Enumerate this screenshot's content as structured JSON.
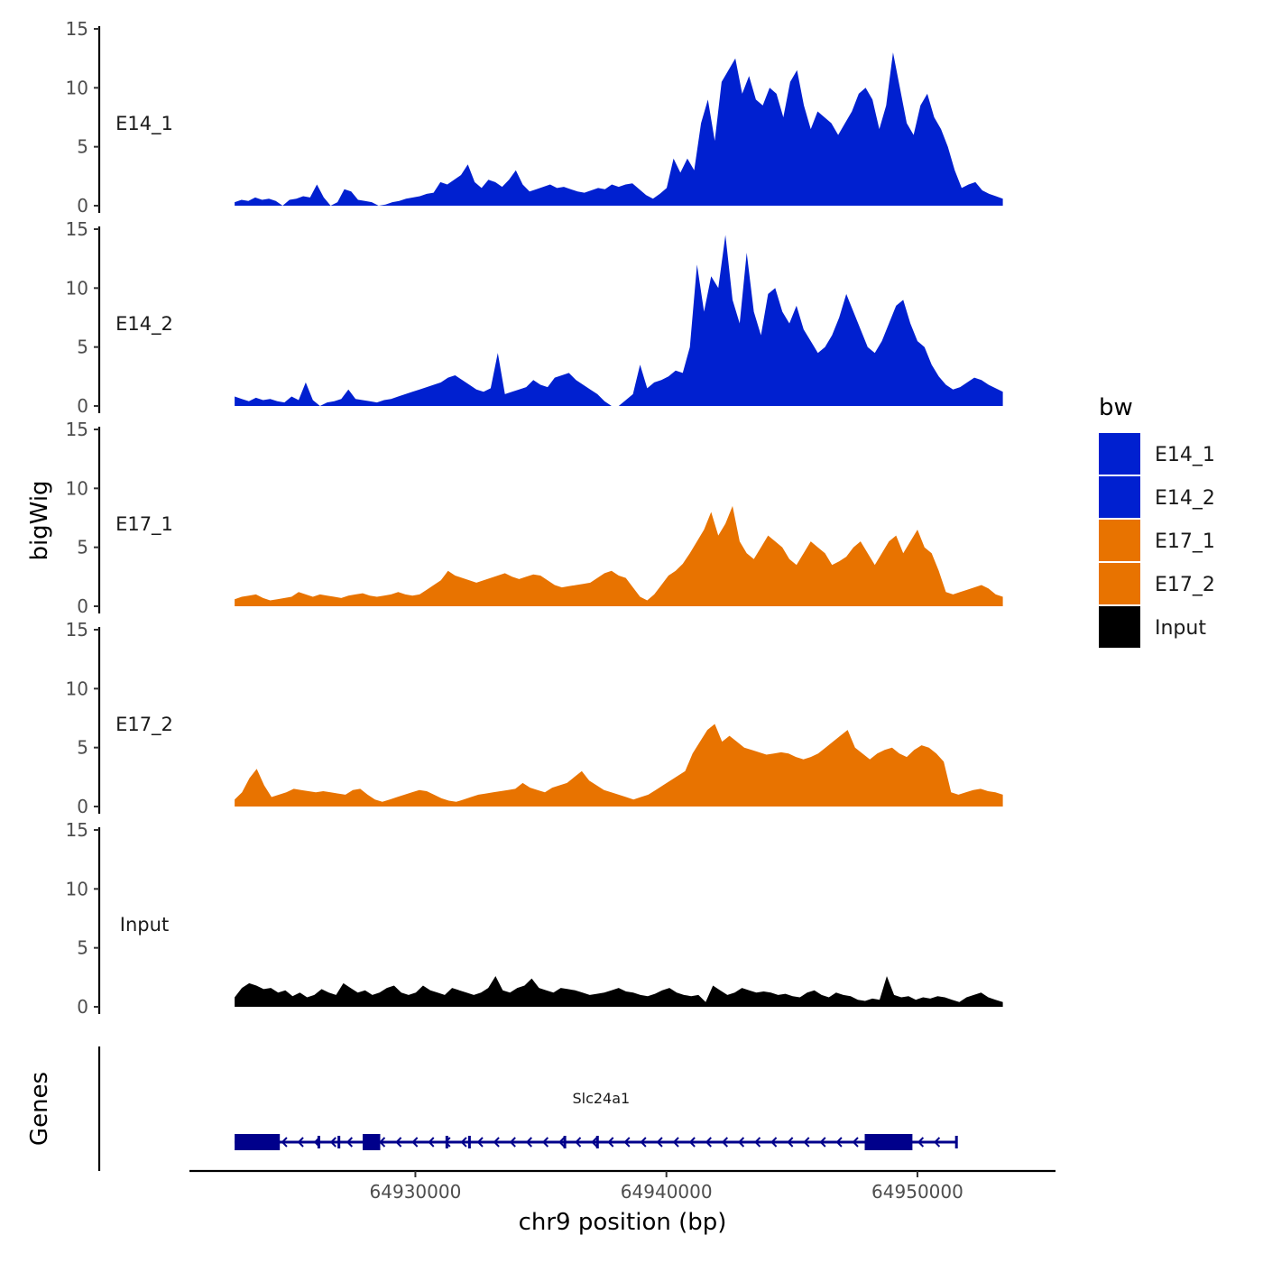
{
  "chart_data": {
    "type": "area",
    "chromosome": "chr9",
    "xlabel": "chr9 position (bp)",
    "ylabel": "bigWig",
    "genes_label": "Genes",
    "xlim": [
      64921000,
      64955500
    ],
    "x_ticks": [
      64930000,
      64940000,
      64950000
    ],
    "x_tick_labels": [
      "64930000",
      "64940000",
      "64950000"
    ],
    "ylim": [
      0,
      15
    ],
    "y_ticks": [
      0,
      5,
      10,
      15
    ],
    "y_tick_labels": [
      "0",
      "5",
      "10",
      "15"
    ],
    "data_range": [
      64922800,
      64953400
    ],
    "legend": {
      "title": "bw",
      "position": "right",
      "items": [
        {
          "label": "E14_1",
          "color": "#0020d0"
        },
        {
          "label": "E14_2",
          "color": "#0020d0"
        },
        {
          "label": "E17_1",
          "color": "#e87300"
        },
        {
          "label": "E17_2",
          "color": "#e87300"
        },
        {
          "label": "Input",
          "color": "#000000"
        }
      ]
    },
    "series": [
      {
        "name": "E14_1",
        "color": "#0020d0",
        "values": [
          0.3,
          0.5,
          0.4,
          0.7,
          0.5,
          0.6,
          0.4,
          0,
          0.5,
          0.6,
          0.8,
          0.7,
          1.8,
          0.7,
          0,
          0.3,
          1.4,
          1.2,
          0.5,
          0.4,
          0.3,
          0,
          0.1,
          0.3,
          0.4,
          0.6,
          0.7,
          0.8,
          1.0,
          1.1,
          2.0,
          1.8,
          2.2,
          2.6,
          3.5,
          2.0,
          1.5,
          2.2,
          2.0,
          1.6,
          2.2,
          3.0,
          1.8,
          1.2,
          1.4,
          1.6,
          1.8,
          1.5,
          1.6,
          1.4,
          1.2,
          1.1,
          1.3,
          1.5,
          1.4,
          1.8,
          1.6,
          1.8,
          1.9,
          1.4,
          0.9,
          0.6,
          1.0,
          1.5,
          4.0,
          2.8,
          4.0,
          3.0,
          7.0,
          9.0,
          5.5,
          10.5,
          11.5,
          12.5,
          9.5,
          11.0,
          9.0,
          8.5,
          10.0,
          9.5,
          7.5,
          10.5,
          11.5,
          8.5,
          6.5,
          8.0,
          7.5,
          7.0,
          6.0,
          7.0,
          8.0,
          9.5,
          10.0,
          9.0,
          6.5,
          8.5,
          13.0,
          10.0,
          7.0,
          6.0,
          8.5,
          9.5,
          7.5,
          6.5,
          5.0,
          3.0,
          1.5,
          1.8,
          2.0,
          1.3,
          1.0,
          0.8,
          0.6
        ]
      },
      {
        "name": "E14_2",
        "color": "#0020d0",
        "values": [
          0.8,
          0.6,
          0.4,
          0.7,
          0.5,
          0.6,
          0.4,
          0.3,
          0.8,
          0.5,
          2.0,
          0.5,
          0,
          0.3,
          0.4,
          0.6,
          1.4,
          0.6,
          0.5,
          0.4,
          0.3,
          0.5,
          0.6,
          0.8,
          1.0,
          1.2,
          1.4,
          1.6,
          1.8,
          2.0,
          2.4,
          2.6,
          2.2,
          1.8,
          1.4,
          1.2,
          1.5,
          4.5,
          1.0,
          1.2,
          1.4,
          1.6,
          2.2,
          1.8,
          1.6,
          2.4,
          2.6,
          2.8,
          2.2,
          1.8,
          1.4,
          1.0,
          0.4,
          0,
          0,
          0.5,
          1.0,
          3.5,
          1.5,
          2.0,
          2.2,
          2.5,
          3.0,
          2.8,
          5.0,
          12.0,
          8.0,
          11.0,
          10.0,
          14.5,
          9.0,
          7.0,
          13.0,
          8.0,
          6.0,
          9.5,
          10.0,
          8.0,
          7.0,
          8.5,
          6.5,
          5.5,
          4.5,
          5.0,
          6.0,
          7.5,
          9.5,
          8.0,
          6.5,
          5.0,
          4.5,
          5.5,
          7.0,
          8.5,
          9.0,
          7.0,
          5.5,
          5.0,
          3.5,
          2.5,
          1.8,
          1.4,
          1.6,
          2.0,
          2.4,
          2.2,
          1.8,
          1.5,
          1.2
        ]
      },
      {
        "name": "E17_1",
        "color": "#e87300",
        "values": [
          0.6,
          0.8,
          0.9,
          1.0,
          0.7,
          0.5,
          0.6,
          0.7,
          0.8,
          1.2,
          1.0,
          0.8,
          1.0,
          0.9,
          0.8,
          0.7,
          0.9,
          1.0,
          1.1,
          0.9,
          0.8,
          0.9,
          1.0,
          1.2,
          1.0,
          0.9,
          1.0,
          1.4,
          1.8,
          2.2,
          3.0,
          2.6,
          2.4,
          2.2,
          2.0,
          2.2,
          2.4,
          2.6,
          2.8,
          2.5,
          2.3,
          2.5,
          2.7,
          2.6,
          2.2,
          1.8,
          1.6,
          1.7,
          1.8,
          1.9,
          2.0,
          2.4,
          2.8,
          3.0,
          2.6,
          2.4,
          1.6,
          0.8,
          0.5,
          1.0,
          1.8,
          2.6,
          3.0,
          3.6,
          4.5,
          5.5,
          6.5,
          8.0,
          6.0,
          7.0,
          8.5,
          5.5,
          4.5,
          4.0,
          5.0,
          6.0,
          5.5,
          5.0,
          4.0,
          3.5,
          4.5,
          5.5,
          5.0,
          4.5,
          3.5,
          3.8,
          4.2,
          5.0,
          5.5,
          4.5,
          3.5,
          4.5,
          5.5,
          6.0,
          4.5,
          5.5,
          6.5,
          5.0,
          4.5,
          3.0,
          1.2,
          1.0,
          1.2,
          1.4,
          1.6,
          1.8,
          1.5,
          1.0,
          0.8
        ]
      },
      {
        "name": "E17_2",
        "color": "#e87300",
        "values": [
          0.6,
          1.2,
          2.4,
          3.2,
          1.8,
          0.8,
          1.0,
          1.2,
          1.5,
          1.4,
          1.3,
          1.2,
          1.3,
          1.2,
          1.1,
          1.0,
          1.4,
          1.5,
          1.0,
          0.6,
          0.4,
          0.6,
          0.8,
          1.0,
          1.2,
          1.4,
          1.3,
          1.0,
          0.7,
          0.5,
          0.4,
          0.6,
          0.8,
          1.0,
          1.1,
          1.2,
          1.3,
          1.4,
          1.5,
          2.0,
          1.6,
          1.4,
          1.2,
          1.6,
          1.8,
          2.0,
          2.5,
          3.0,
          2.2,
          1.8,
          1.4,
          1.2,
          1.0,
          0.8,
          0.6,
          0.8,
          1.0,
          1.4,
          1.8,
          2.2,
          2.6,
          3.0,
          4.5,
          5.5,
          6.5,
          7.0,
          5.5,
          6.0,
          5.5,
          5.0,
          4.8,
          4.6,
          4.4,
          4.5,
          4.6,
          4.5,
          4.2,
          4.0,
          4.2,
          4.5,
          5.0,
          5.5,
          6.0,
          6.5,
          5.0,
          4.5,
          4.0,
          4.5,
          4.8,
          5.0,
          4.5,
          4.2,
          4.8,
          5.2,
          5.0,
          4.5,
          3.8,
          1.2,
          1.0,
          1.2,
          1.4,
          1.5,
          1.3,
          1.2,
          1.0
        ]
      },
      {
        "name": "Input",
        "color": "#000000",
        "values": [
          0.8,
          1.6,
          2.0,
          1.8,
          1.5,
          1.6,
          1.2,
          1.4,
          0.9,
          1.2,
          0.8,
          1.0,
          1.5,
          1.2,
          1.0,
          2.0,
          1.6,
          1.2,
          1.4,
          1.0,
          1.2,
          1.6,
          1.8,
          1.2,
          1.0,
          1.2,
          1.8,
          1.4,
          1.2,
          1.0,
          1.6,
          1.4,
          1.2,
          1.0,
          1.2,
          1.6,
          2.6,
          1.4,
          1.2,
          1.6,
          1.8,
          2.4,
          1.6,
          1.4,
          1.2,
          1.6,
          1.5,
          1.4,
          1.2,
          1.0,
          1.1,
          1.2,
          1.4,
          1.6,
          1.3,
          1.2,
          1.0,
          0.9,
          1.1,
          1.4,
          1.6,
          1.2,
          1.0,
          0.9,
          1.0,
          0.4,
          1.8,
          1.4,
          1.0,
          1.2,
          1.6,
          1.4,
          1.2,
          1.3,
          1.2,
          1.0,
          1.1,
          0.9,
          0.8,
          1.2,
          1.4,
          1.0,
          0.8,
          1.2,
          1.0,
          0.9,
          0.6,
          0.5,
          0.7,
          0.6,
          2.6,
          1.0,
          0.8,
          0.9,
          0.6,
          0.8,
          0.7,
          0.9,
          0.8,
          0.6,
          0.4,
          0.8,
          1.0,
          1.2,
          0.8,
          0.6,
          0.4
        ]
      }
    ],
    "gene": {
      "name": "Slc24a1",
      "strand": "-",
      "start": 64922800,
      "end": 64951600,
      "exons": [
        [
          64922800,
          64924600
        ],
        [
          64926100,
          64926200
        ],
        [
          64926900,
          64926950
        ],
        [
          64927900,
          64928600
        ],
        [
          64931200,
          64931250
        ],
        [
          64932100,
          64932150
        ],
        [
          64935900,
          64935950
        ],
        [
          64937200,
          64937250
        ],
        [
          64947900,
          64949800
        ],
        [
          64951500,
          64951600
        ]
      ]
    }
  }
}
